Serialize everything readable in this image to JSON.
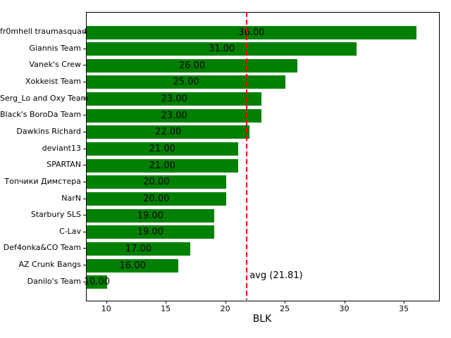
{
  "chart_data": {
    "type": "bar",
    "orientation": "horizontal",
    "title": "",
    "xlabel": "BLK",
    "ylabel": "",
    "categories": [
      "fr0mhell traumasquad",
      "Giannis Team",
      "Vanek's Crew",
      "Xokkeist Team",
      "Serg_Lo and Oxy Team",
      "Black's BoroDa Team",
      "Dawkins Richard",
      "deviant13",
      "SPARTAN",
      "Топчики Димстера",
      "NarN",
      "Starbury SLS",
      "C-Lav",
      "Def4onka&CO Team",
      "AZ Crunk Bangs",
      "Danilo's Team"
    ],
    "values": [
      36,
      31,
      26,
      25,
      23,
      23,
      22,
      21,
      21,
      20,
      20,
      19,
      19,
      17,
      16,
      10
    ],
    "bar_labels": [
      "36.00",
      "31.00",
      "26.00",
      "25.00",
      "23.00",
      "23.00",
      "22.00",
      "21.00",
      "21.00",
      "20.00",
      "20.00",
      "19.00",
      "19.00",
      "17.00",
      "16.00",
      "10.00"
    ],
    "xticks": [
      "10",
      "15",
      "20",
      "25",
      "30",
      "35"
    ],
    "xtick_values": [
      10,
      15,
      20,
      25,
      30,
      35
    ],
    "xlim": [
      8.3,
      37.9
    ],
    "grid": false,
    "legend": false,
    "bar_color": "#008000",
    "background_color": "#ffffff",
    "text_color": "#000000",
    "avg_line": {
      "value": 21.81,
      "label": "avg (21.81)",
      "color": "#ff0000",
      "line_style": "dashed"
    }
  }
}
